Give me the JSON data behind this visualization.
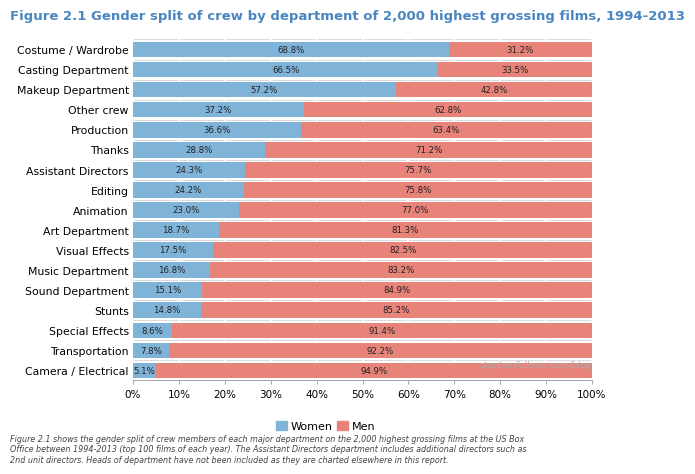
{
  "title": "Figure 2.1 Gender split of crew by department of 2,000 highest grossing films, 1994-2013",
  "categories": [
    "Costume / Wardrobe",
    "Casting Department",
    "Makeup Department",
    "Other crew",
    "Production",
    "Thanks",
    "Assistant Directors",
    "Editing",
    "Animation",
    "Art Department",
    "Visual Effects",
    "Music Department",
    "Sound Department",
    "Stunts",
    "Special Effects",
    "Transportation",
    "Camera / Electrical"
  ],
  "women_pct": [
    68.8,
    66.5,
    57.2,
    37.2,
    36.6,
    28.8,
    24.3,
    24.2,
    23.0,
    18.7,
    17.5,
    16.8,
    15.1,
    14.8,
    8.6,
    7.8,
    5.1
  ],
  "men_pct": [
    31.2,
    33.5,
    42.8,
    62.8,
    63.4,
    71.2,
    75.7,
    75.8,
    77.0,
    81.3,
    82.5,
    83.2,
    84.9,
    85.2,
    91.4,
    92.2,
    94.9
  ],
  "color_women": "#7fb3d8",
  "color_men": "#e8837a",
  "background_color": "#ffffff",
  "title_color": "#4a86c0",
  "title_fontsize": 9.5,
  "footnote": "Figure 2.1 shows the gender split of crew members of each major department on the 2,000 highest grossing films at the US Box\nOffice between 1994-2013 (top 100 films of each year). The Assistant Directors department includes additional directors such as\n2nd unit directors. Heads of department have not been included as they are charted elsewhere in this report.",
  "watermark": "stephenfollows.com/blog"
}
